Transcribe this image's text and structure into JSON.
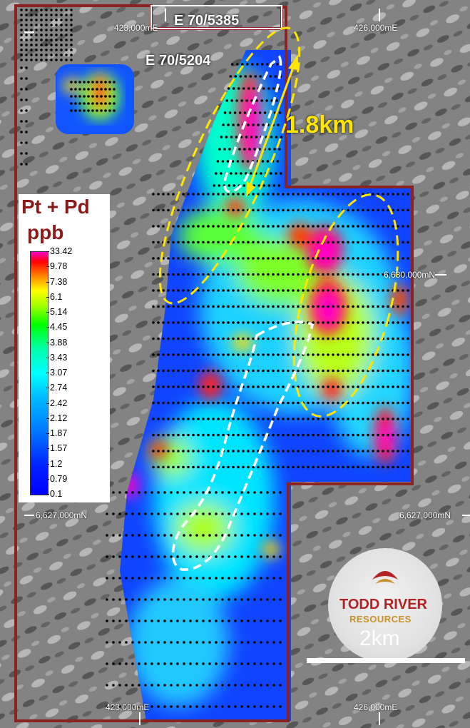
{
  "labels": {
    "tenement_north": "E 70/5385",
    "tenement_main": "E 70/5204",
    "easting_west": "423,000mE",
    "easting_east": "426,000mE",
    "northing_upper": "6,630,000mN",
    "northing_lower_left": "6,627,000mN",
    "northing_lower_right": "6,627,000mN",
    "distance": "1.8km",
    "scale_bar": "2km"
  },
  "legend": {
    "title_line1": "Pt + Pd",
    "title_line2": "ppb",
    "ticks": [
      "33.42",
      "9.78",
      "7.38",
      "6.1",
      "5.14",
      "4.45",
      "3.88",
      "3.43",
      "3.07",
      "2.74",
      "2.42",
      "2.12",
      "1.87",
      "1.57",
      "1.2",
      "0.79",
      "0.1"
    ]
  },
  "logo": {
    "line1": "TODD RIVER",
    "line2": "RESOURCES"
  },
  "colors": {
    "tenement_outline": "#8b2323",
    "anomaly_outline": "#ffe600",
    "target_outline": "#ffffff",
    "legend_title": "#8b1a1a",
    "logo_red": "#b22222",
    "logo_gold": "#c8902a"
  }
}
